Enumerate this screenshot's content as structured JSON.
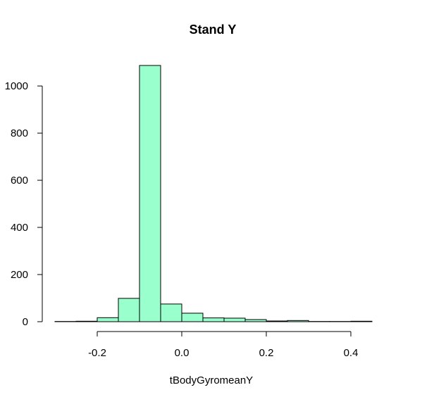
{
  "chart_data": {
    "type": "bar",
    "title": "Stand Y",
    "xlabel": "tBodyGyromeanY",
    "ylabel": "",
    "bar_color": "#99ffcc",
    "bin_width": 0.05,
    "bins": [
      {
        "x_start": -0.3,
        "x_end": -0.25,
        "count": 1
      },
      {
        "x_start": -0.25,
        "x_end": -0.2,
        "count": 2
      },
      {
        "x_start": -0.2,
        "x_end": -0.15,
        "count": 17
      },
      {
        "x_start": -0.15,
        "x_end": -0.1,
        "count": 99
      },
      {
        "x_start": -0.1,
        "x_end": -0.05,
        "count": 1087
      },
      {
        "x_start": -0.05,
        "x_end": 0.0,
        "count": 75
      },
      {
        "x_start": 0.0,
        "x_end": 0.05,
        "count": 36
      },
      {
        "x_start": 0.05,
        "x_end": 0.1,
        "count": 16
      },
      {
        "x_start": 0.1,
        "x_end": 0.15,
        "count": 15
      },
      {
        "x_start": 0.15,
        "x_end": 0.2,
        "count": 9
      },
      {
        "x_start": 0.2,
        "x_end": 0.25,
        "count": 3
      },
      {
        "x_start": 0.25,
        "x_end": 0.3,
        "count": 5
      },
      {
        "x_start": 0.3,
        "x_end": 0.35,
        "count": 1
      },
      {
        "x_start": 0.35,
        "x_end": 0.4,
        "count": 1
      },
      {
        "x_start": 0.4,
        "x_end": 0.45,
        "count": 2
      }
    ],
    "x_ticks": [
      {
        "value": -0.2,
        "label": "-0.2"
      },
      {
        "value": 0.0,
        "label": "0.0"
      },
      {
        "value": 0.2,
        "label": "0.2"
      },
      {
        "value": 0.4,
        "label": "0.4"
      }
    ],
    "y_ticks": [
      {
        "value": 0,
        "label": "0"
      },
      {
        "value": 200,
        "label": "200"
      },
      {
        "value": 400,
        "label": "400"
      },
      {
        "value": 600,
        "label": "600"
      },
      {
        "value": 800,
        "label": "800"
      },
      {
        "value": 1000,
        "label": "1000"
      }
    ],
    "xlim": [
      -0.3,
      0.45
    ],
    "ylim": [
      0,
      1087
    ],
    "grid": false,
    "legend": "none"
  }
}
